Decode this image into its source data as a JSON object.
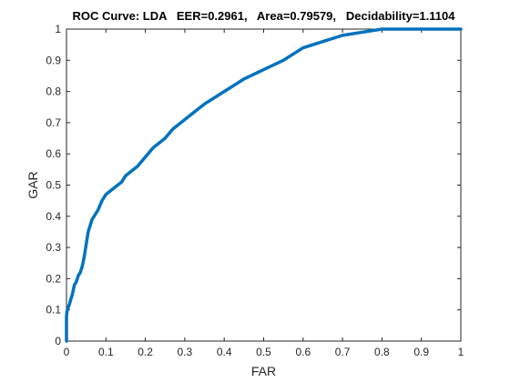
{
  "chart_data": {
    "type": "line",
    "title": "ROC Curve: LDA   EER=0.2961,   Area=0.79579,   Decidability=1.1104",
    "xlabel": "FAR",
    "ylabel": "GAR",
    "xlim": [
      0,
      1
    ],
    "ylim": [
      0,
      1
    ],
    "xticks": [
      0,
      0.1,
      0.2,
      0.3,
      0.4,
      0.5,
      0.6,
      0.7,
      0.8,
      0.9,
      1
    ],
    "yticks": [
      0,
      0.1,
      0.2,
      0.3,
      0.4,
      0.5,
      0.6,
      0.7,
      0.8,
      0.9,
      1
    ],
    "xtick_labels": [
      "0",
      "0.1",
      "0.2",
      "0.3",
      "0.4",
      "0.5",
      "0.6",
      "0.7",
      "0.8",
      "0.9",
      "1"
    ],
    "ytick_labels": [
      "0",
      "0.1",
      "0.2",
      "0.3",
      "0.4",
      "0.5",
      "0.6",
      "0.7",
      "0.8",
      "0.9",
      "1"
    ],
    "grid": false,
    "line_color": "#0072bd",
    "series": [
      {
        "x": [
          0,
          0,
          0.002,
          0.005,
          0.008,
          0.01,
          0.015,
          0.02,
          0.025,
          0.03,
          0.035,
          0.04,
          0.045,
          0.05,
          0.055,
          0.06,
          0.065,
          0.07,
          0.075,
          0.08,
          0.09,
          0.1,
          0.11,
          0.12,
          0.13,
          0.14,
          0.15,
          0.16,
          0.18,
          0.2,
          0.22,
          0.24,
          0.25,
          0.27,
          0.3,
          0.33,
          0.35,
          0.4,
          0.45,
          0.5,
          0.55,
          0.6,
          0.65,
          0.7,
          0.75,
          0.8,
          0.9,
          1
        ],
        "y": [
          0,
          0.08,
          0.1,
          0.11,
          0.12,
          0.13,
          0.15,
          0.18,
          0.19,
          0.21,
          0.22,
          0.24,
          0.27,
          0.31,
          0.35,
          0.37,
          0.39,
          0.4,
          0.41,
          0.42,
          0.45,
          0.47,
          0.48,
          0.49,
          0.5,
          0.51,
          0.53,
          0.54,
          0.56,
          0.59,
          0.62,
          0.64,
          0.65,
          0.68,
          0.71,
          0.74,
          0.76,
          0.8,
          0.84,
          0.87,
          0.9,
          0.94,
          0.96,
          0.98,
          0.99,
          1,
          1,
          1
        ]
      }
    ]
  }
}
